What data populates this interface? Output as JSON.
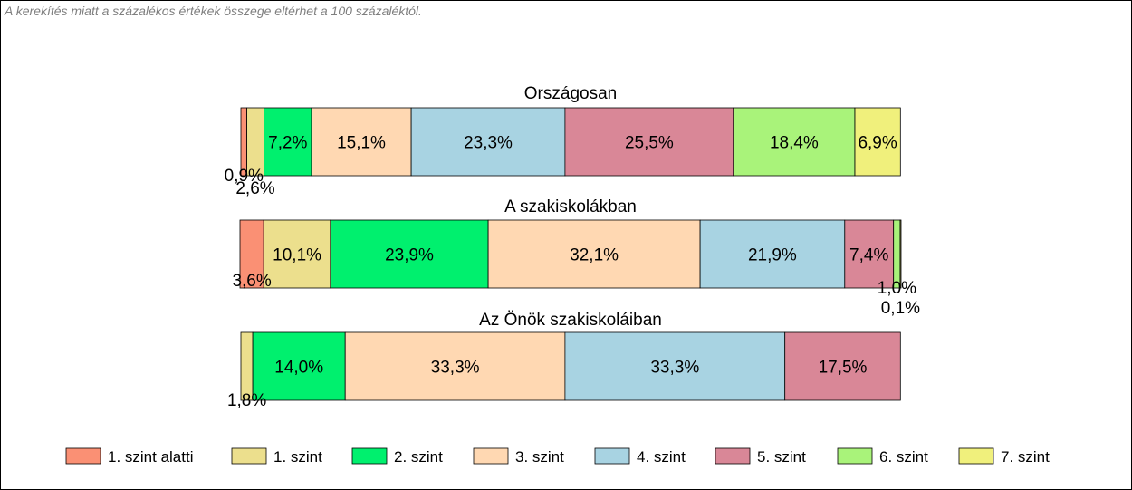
{
  "note": "A kerekítés miatt a  százalékos értékek összege eltérhet a 100 százaléktól.",
  "chart_data": {
    "type": "bar",
    "orientation": "horizontal-stacked",
    "categories": [
      "1. szint alatti",
      "1. szint",
      "2. szint",
      "3. szint",
      "4. szint",
      "5. szint",
      "6. szint",
      "7. szint"
    ],
    "colors": [
      "#fa9074",
      "#ecdf8d",
      "#00f06e",
      "#ffd8b2",
      "#a8d3e2",
      "#d98797",
      "#a9f37a",
      "#f0f07c"
    ],
    "legend_position": "bottom",
    "grid": false,
    "bars": [
      {
        "title": "Országosan",
        "values": [
          0.9,
          2.6,
          7.2,
          15.1,
          23.3,
          25.5,
          18.4,
          6.9
        ],
        "labels": [
          "0,9%",
          "2,6%",
          "7,2%",
          "15,1%",
          "23,3%",
          "25,5%",
          "18,4%",
          "6,9%"
        ]
      },
      {
        "title": "A szakiskolákban",
        "values": [
          3.6,
          10.1,
          23.9,
          32.1,
          21.9,
          7.4,
          1.0,
          0.1
        ],
        "labels": [
          "3,6%",
          "10,1%",
          "23,9%",
          "32,1%",
          "21,9%",
          "7,4%",
          "1,0%",
          "0,1%"
        ]
      },
      {
        "title": "Az Önök szakiskoláiban",
        "values": [
          0.0,
          1.8,
          14.0,
          33.3,
          33.3,
          17.5,
          0.0,
          0.0
        ],
        "labels": [
          "",
          "1,8%",
          "14,0%",
          "33,3%",
          "33,3%",
          "17,5%",
          "",
          ""
        ]
      }
    ]
  }
}
